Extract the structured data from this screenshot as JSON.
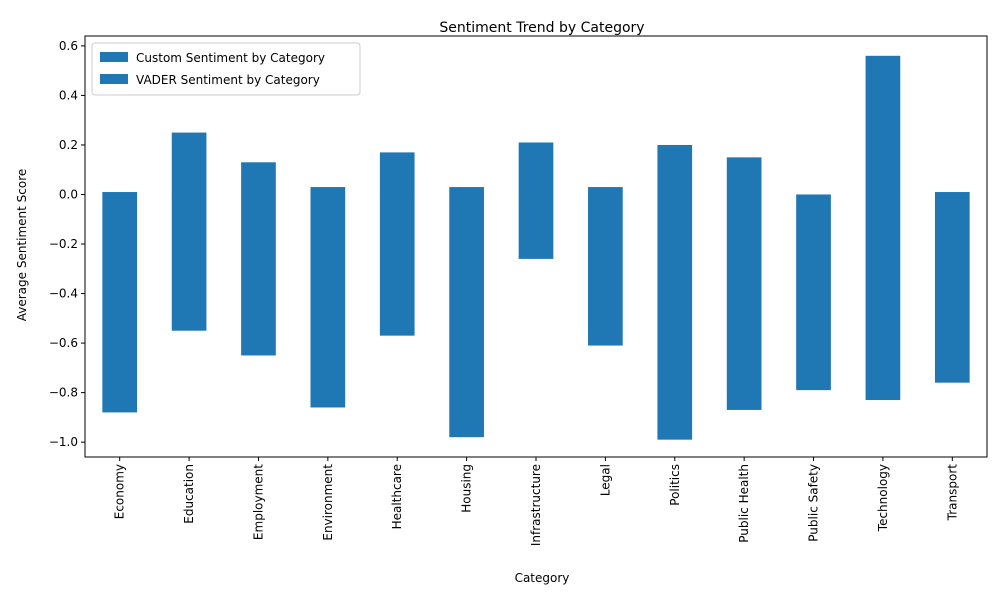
{
  "chart_data": {
    "type": "bar",
    "title": "Sentiment Trend by Category",
    "xlabel": "Category",
    "ylabel": "Average Sentiment Score",
    "ylim": [
      -1.06,
      0.64
    ],
    "yticks": [
      -1.0,
      -0.8,
      -0.6,
      -0.4,
      -0.2,
      0.0,
      0.2,
      0.4,
      0.6
    ],
    "ytick_labels": [
      "−1.0",
      "−0.8",
      "−0.6",
      "−0.4",
      "−0.2",
      "0.0",
      "0.2",
      "0.4",
      "0.6"
    ],
    "grid": false,
    "legend_position": "top-left",
    "categories": [
      "Economy",
      "Education",
      "Employment",
      "Environment",
      "Healthcare",
      "Housing",
      "Infrastructure",
      "Legal",
      "Politics",
      "Public Health",
      "Public Safety",
      "Technology",
      "Transport"
    ],
    "series": [
      {
        "name": "Custom Sentiment by Category",
        "color": "#1f77b4",
        "values": [
          0.01,
          0.25,
          0.13,
          0.03,
          0.17,
          0.03,
          0.21,
          0.03,
          0.2,
          0.15,
          0.0,
          0.56,
          0.01
        ]
      },
      {
        "name": "VADER Sentiment by Category",
        "color": "#1f77b4",
        "values": [
          -0.88,
          -0.55,
          -0.65,
          -0.86,
          -0.57,
          -0.98,
          -0.26,
          -0.61,
          -0.99,
          -0.87,
          -0.79,
          -0.83,
          -0.76
        ]
      }
    ]
  }
}
